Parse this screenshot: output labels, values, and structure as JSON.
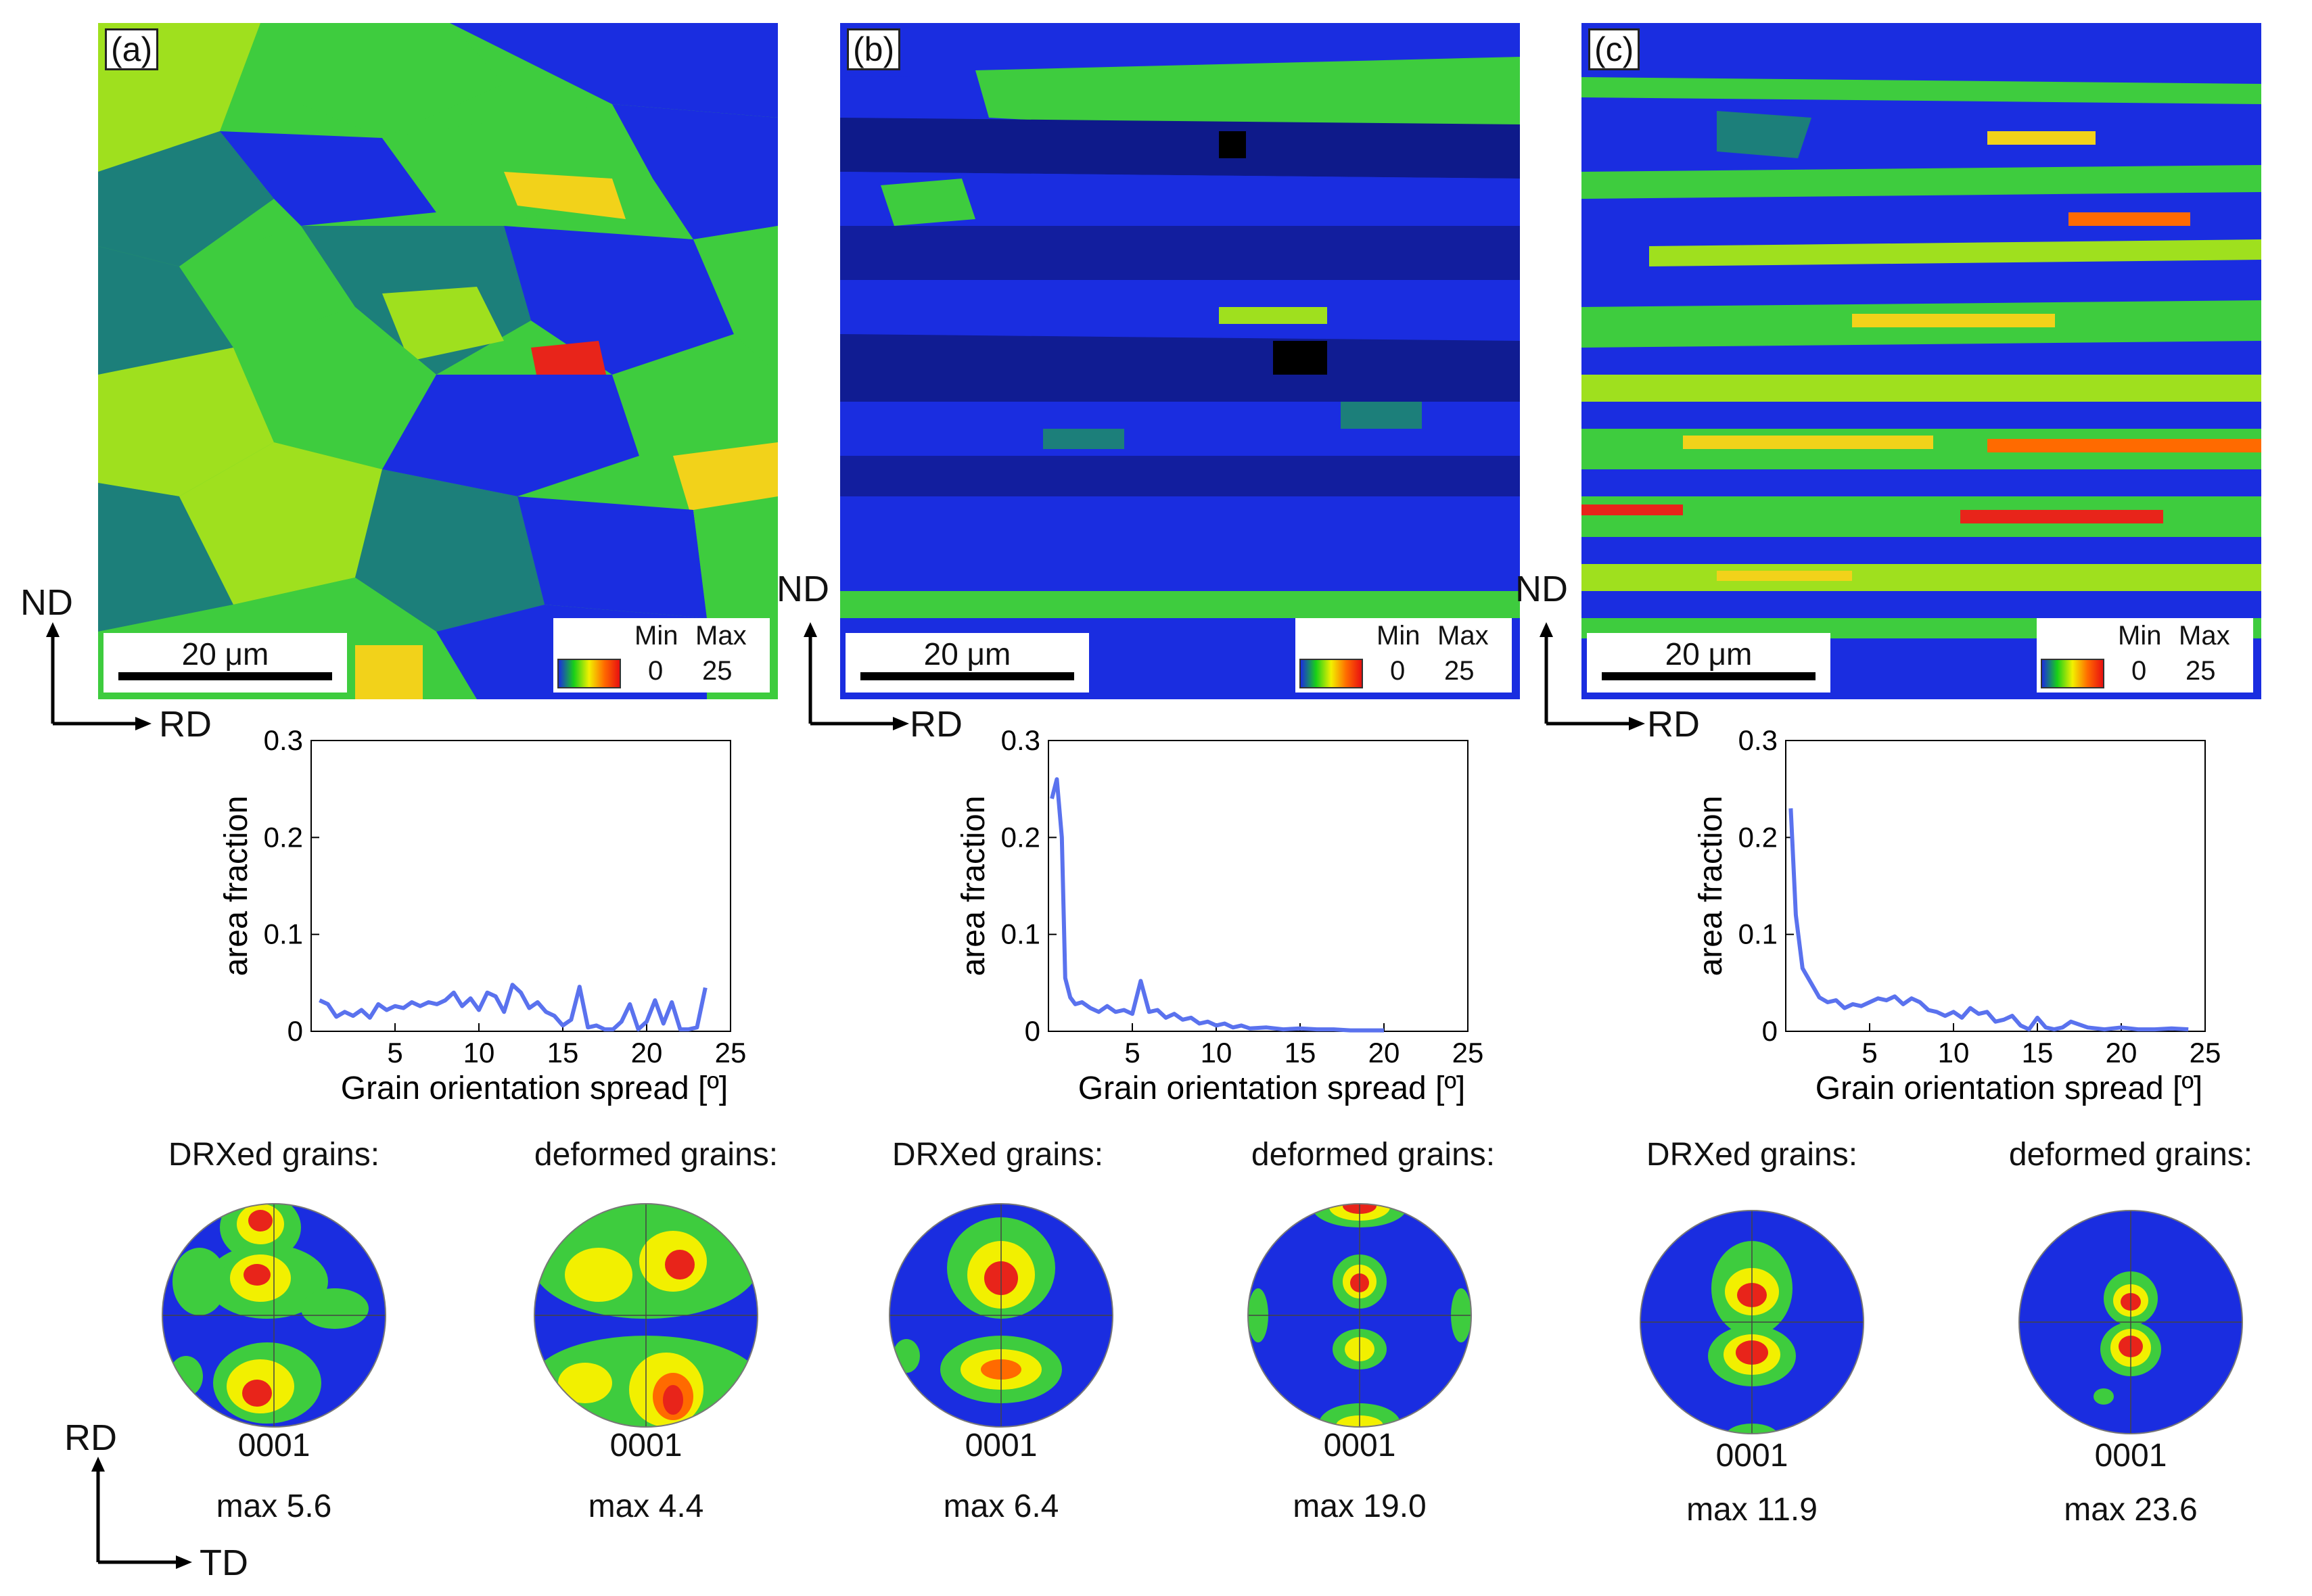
{
  "panels": [
    {
      "label": "(a)",
      "scale_bar": "20 μm",
      "legend": {
        "min_label": "Min",
        "max_label": "Max",
        "min_value": "0",
        "max_value": "25"
      },
      "axes": {
        "vertical": "ND",
        "horizontal": "RD"
      }
    },
    {
      "label": "(b)",
      "scale_bar": "20 μm",
      "legend": {
        "min_label": "Min",
        "max_label": "Max",
        "min_value": "0",
        "max_value": "25"
      },
      "axes": {
        "vertical": "ND",
        "horizontal": "RD"
      }
    },
    {
      "label": "(c)",
      "scale_bar": "20 μm",
      "legend": {
        "min_label": "Min",
        "max_label": "Max",
        "min_value": "0",
        "max_value": "25"
      },
      "axes": {
        "vertical": "ND",
        "horizontal": "RD"
      }
    }
  ],
  "colors": {
    "gos_blue": "#1a2de0",
    "gos_teal": "#1c7f7a",
    "gos_green": "#3ecc3e",
    "gos_lime": "#9fe01e",
    "gos_yellow": "#f2d21a",
    "gos_red": "#e8241a",
    "line": "#5a72ee"
  },
  "chart_data": [
    {
      "type": "line",
      "xlabel": "Grain orientation spread [º]",
      "ylabel": "area fraction",
      "xlim": [
        0,
        25
      ],
      "ylim": [
        0,
        0.3
      ],
      "xticks": [
        "5",
        "10",
        "15",
        "20",
        "25"
      ],
      "yticks": [
        "0",
        "0.1",
        "0.2",
        "0.3"
      ],
      "x": [
        0.5,
        1,
        1.5,
        2,
        2.5,
        3,
        3.5,
        4,
        4.5,
        5,
        5.5,
        6,
        6.5,
        7,
        7.5,
        8,
        8.5,
        9,
        9.5,
        10,
        10.5,
        11,
        11.5,
        12,
        12.5,
        13,
        13.5,
        14,
        14.5,
        15,
        15.5,
        16,
        16.5,
        17,
        17.5,
        18,
        18.5,
        19,
        19.5,
        20,
        20.5,
        21,
        21.5,
        22,
        22.5,
        23,
        23.5
      ],
      "values": [
        0.032,
        0.028,
        0.015,
        0.02,
        0.016,
        0.022,
        0.014,
        0.028,
        0.022,
        0.026,
        0.024,
        0.03,
        0.026,
        0.03,
        0.028,
        0.032,
        0.04,
        0.026,
        0.034,
        0.022,
        0.04,
        0.036,
        0.02,
        0.048,
        0.04,
        0.024,
        0.03,
        0.02,
        0.016,
        0.006,
        0.012,
        0.046,
        0.004,
        0.006,
        0.002,
        0.002,
        0.01,
        0.028,
        0.002,
        0.01,
        0.032,
        0.008,
        0.03,
        0.002,
        0.002,
        0.004,
        0.045
      ]
    },
    {
      "type": "line",
      "xlabel": "Grain orientation spread [º]",
      "ylabel": "area fraction",
      "xlim": [
        0,
        25
      ],
      "ylim": [
        0,
        0.3
      ],
      "xticks": [
        "5",
        "10",
        "15",
        "20",
        "25"
      ],
      "yticks": [
        "0",
        "0.1",
        "0.2",
        "0.3"
      ],
      "x": [
        0.2,
        0.5,
        0.8,
        1,
        1.3,
        1.6,
        2,
        2.5,
        3,
        3.5,
        4,
        4.5,
        5,
        5.5,
        6,
        6.5,
        7,
        7.5,
        8,
        8.5,
        9,
        9.5,
        10,
        10.5,
        11,
        11.5,
        12,
        13,
        14,
        15,
        16,
        17,
        18,
        19,
        20
      ],
      "values": [
        0.24,
        0.26,
        0.2,
        0.055,
        0.035,
        0.028,
        0.03,
        0.024,
        0.02,
        0.026,
        0.02,
        0.022,
        0.018,
        0.052,
        0.02,
        0.022,
        0.014,
        0.018,
        0.012,
        0.014,
        0.008,
        0.01,
        0.006,
        0.008,
        0.004,
        0.006,
        0.003,
        0.004,
        0.002,
        0.003,
        0.002,
        0.002,
        0.001,
        0.001,
        0.001
      ]
    },
    {
      "type": "line",
      "xlabel": "Grain orientation spread [º]",
      "ylabel": "area fraction",
      "xlim": [
        0,
        25
      ],
      "ylim": [
        0,
        0.3
      ],
      "xticks": [
        "5",
        "10",
        "15",
        "20",
        "25"
      ],
      "yticks": [
        "0",
        "0.1",
        "0.2",
        "0.3"
      ],
      "x": [
        0.3,
        0.6,
        1,
        1.5,
        2,
        2.5,
        3,
        3.5,
        4,
        4.5,
        5,
        5.5,
        6,
        6.5,
        7,
        7.5,
        8,
        8.5,
        9,
        9.5,
        10,
        10.5,
        11,
        11.5,
        12,
        12.5,
        13,
        13.5,
        14,
        14.5,
        15,
        15.5,
        16,
        16.5,
        17,
        18,
        19,
        20,
        21,
        22,
        23,
        24
      ],
      "values": [
        0.23,
        0.12,
        0.065,
        0.05,
        0.035,
        0.03,
        0.032,
        0.024,
        0.028,
        0.026,
        0.03,
        0.034,
        0.032,
        0.036,
        0.028,
        0.034,
        0.03,
        0.022,
        0.02,
        0.016,
        0.02,
        0.014,
        0.024,
        0.018,
        0.02,
        0.01,
        0.012,
        0.016,
        0.006,
        0.002,
        0.014,
        0.004,
        0.002,
        0.004,
        0.01,
        0.004,
        0.002,
        0.004,
        0.002,
        0.002,
        0.003,
        0.002
      ]
    }
  ],
  "pole_figures": {
    "titles": [
      "DRXed grains:",
      "deformed grains:",
      "DRXed grains:",
      "deformed grains:",
      "DRXed grains:",
      "deformed grains:"
    ],
    "plane": [
      "0001",
      "0001",
      "0001",
      "0001",
      "0001",
      "0001"
    ],
    "max": [
      "max 5.6",
      "max 4.4",
      "max 6.4",
      "max 19.0",
      "max 11.9",
      "max 23.6"
    ],
    "axes": {
      "vertical": "RD",
      "horizontal": "TD"
    }
  }
}
